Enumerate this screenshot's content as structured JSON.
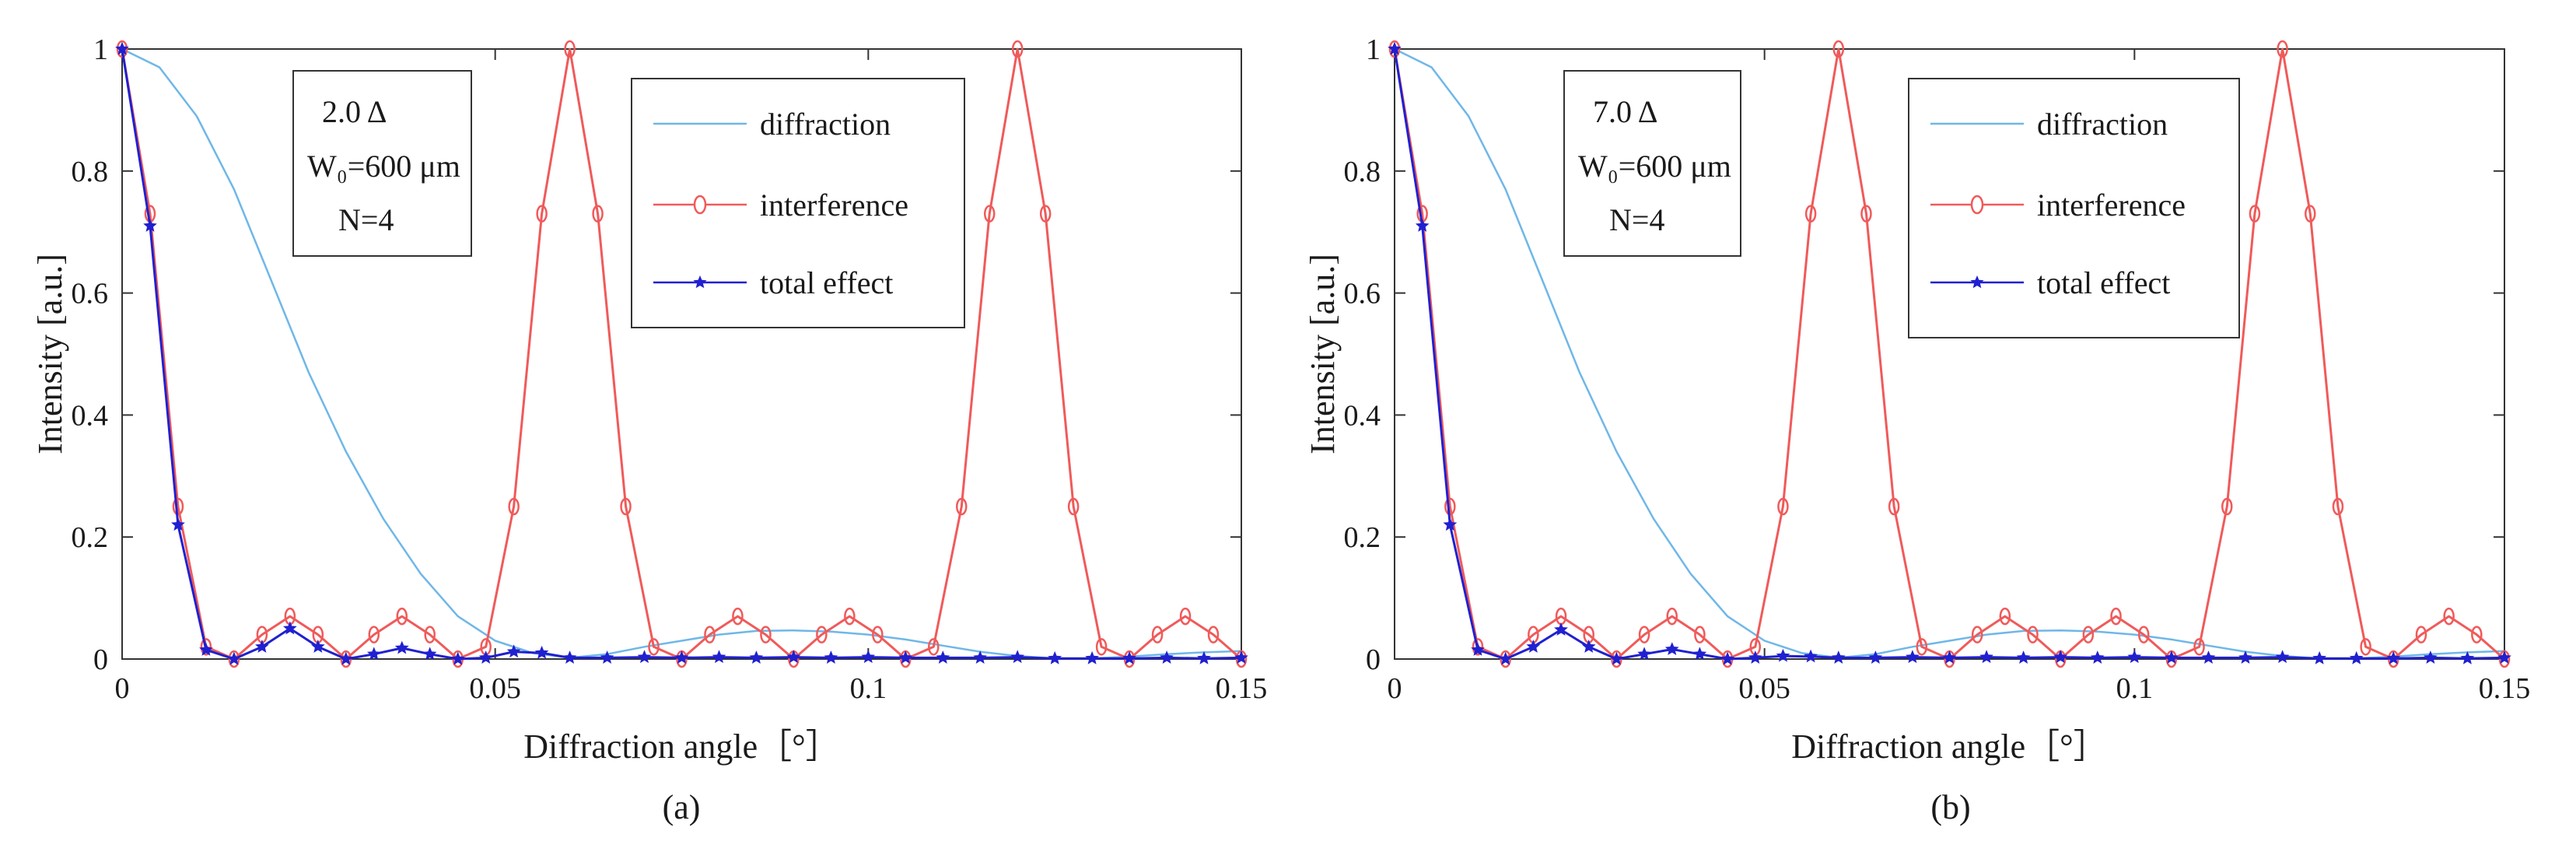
{
  "figure": {
    "panels": [
      {
        "id": "a",
        "panel_label": "(a)",
        "info": {
          "line1": "2.0 Δ",
          "line2": "W₀=600 μm",
          "line3": "N=4"
        },
        "legend": {
          "diffraction": "diffraction",
          "interference": "interference",
          "total": "total effect"
        }
      },
      {
        "id": "b",
        "panel_label": "(b)",
        "info": {
          "line1": "7.0 Δ",
          "line2": "W₀=600 μm",
          "line3": "N=4"
        },
        "legend": {
          "diffraction": "diffraction",
          "interference": "interference",
          "total": "total effect"
        }
      }
    ]
  },
  "colors": {
    "diffraction": "#6fb7e8",
    "interference": "#f05a5a",
    "total": "#2020d0",
    "axis": "#333333",
    "box": "#333333"
  },
  "chart_data": [
    {
      "type": "line",
      "title": "",
      "xlabel": "Diffraction angle［°］",
      "ylabel": "Intensity [a.u.]",
      "xlim": [
        0,
        0.15
      ],
      "ylim": [
        0,
        1
      ],
      "xticks": [
        0,
        0.05,
        0.1,
        0.15
      ],
      "xtick_labels": [
        "0",
        "0.05",
        "0.1",
        "0.15"
      ],
      "yticks": [
        0,
        0.2,
        0.4,
        0.6,
        0.8,
        1
      ],
      "ytick_labels": [
        "0",
        "0.2",
        "0.4",
        "0.6",
        "0.8",
        "1"
      ],
      "series": [
        {
          "name": "diffraction",
          "marker": "none",
          "x": [
            0,
            0.005,
            0.01,
            0.015,
            0.02,
            0.025,
            0.03,
            0.035,
            0.04,
            0.045,
            0.05,
            0.055,
            0.06,
            0.065,
            0.07,
            0.075,
            0.08,
            0.085,
            0.09,
            0.095,
            0.1,
            0.105,
            0.11,
            0.115,
            0.12,
            0.125,
            0.13,
            0.135,
            0.14,
            0.145,
            0.15
          ],
          "y": [
            1,
            0.97,
            0.89,
            0.77,
            0.62,
            0.47,
            0.34,
            0.23,
            0.14,
            0.07,
            0.03,
            0.01,
            0.002,
            0.008,
            0.02,
            0.03,
            0.04,
            0.046,
            0.047,
            0.045,
            0.04,
            0.032,
            0.022,
            0.012,
            0.005,
            0.001,
            0.001,
            0.004,
            0.008,
            0.011,
            0.013
          ]
        },
        {
          "name": "interference",
          "marker": "circle",
          "x": [
            0,
            0.00375,
            0.0075,
            0.01125,
            0.015,
            0.01875,
            0.0225,
            0.02625,
            0.03,
            0.03375,
            0.0375,
            0.04125,
            0.045,
            0.04875,
            0.0525,
            0.05625,
            0.06,
            0.06375,
            0.0675,
            0.07125,
            0.075,
            0.07875,
            0.0825,
            0.08625,
            0.09,
            0.09375,
            0.0975,
            0.10125,
            0.105,
            0.10875,
            0.1125,
            0.11625,
            0.12,
            0.12375,
            0.1275,
            0.13125,
            0.135,
            0.13875,
            0.1425,
            0.14625,
            0.15
          ],
          "y": [
            1,
            0.73,
            0.25,
            0.02,
            0,
            0.04,
            0.07,
            0.04,
            0,
            0.04,
            0.07,
            0.04,
            0,
            0.02,
            0.25,
            0.73,
            1,
            0.73,
            0.25,
            0.02,
            0,
            0.04,
            0.07,
            0.04,
            0,
            0.04,
            0.07,
            0.04,
            0,
            0.02,
            0.25,
            0.73,
            1,
            0.73,
            0.25,
            0.02,
            0,
            0.04,
            0.07,
            0.04,
            0
          ]
        },
        {
          "name": "total effect",
          "marker": "star",
          "x": [
            0,
            0.00375,
            0.0075,
            0.01125,
            0.015,
            0.01875,
            0.0225,
            0.02625,
            0.03,
            0.03375,
            0.0375,
            0.04125,
            0.045,
            0.04875,
            0.0525,
            0.05625,
            0.06,
            0.065,
            0.07,
            0.075,
            0.08,
            0.085,
            0.09,
            0.095,
            0.1,
            0.105,
            0.11,
            0.115,
            0.12,
            0.125,
            0.13,
            0.135,
            0.14,
            0.145,
            0.15
          ],
          "y": [
            1,
            0.71,
            0.22,
            0.015,
            0,
            0.02,
            0.05,
            0.02,
            0,
            0.008,
            0.018,
            0.008,
            0,
            0.002,
            0.012,
            0.01,
            0.002,
            0.002,
            0.003,
            0.002,
            0.003,
            0.002,
            0.003,
            0.002,
            0.003,
            0.002,
            0.002,
            0.002,
            0.003,
            0.001,
            0.001,
            0.001,
            0.002,
            0.001,
            0.002
          ]
        }
      ]
    },
    {
      "type": "line",
      "title": "",
      "xlabel": "Diffraction angle［°］",
      "ylabel": "Intensity [a.u.]",
      "xlim": [
        0,
        0.15
      ],
      "ylim": [
        0,
        1
      ],
      "xticks": [
        0,
        0.05,
        0.1,
        0.15
      ],
      "xtick_labels": [
        "0",
        "0.05",
        "0.1",
        "0.15"
      ],
      "yticks": [
        0,
        0.2,
        0.4,
        0.6,
        0.8,
        1
      ],
      "ytick_labels": [
        "0",
        "0.2",
        "0.4",
        "0.6",
        "0.8",
        "1"
      ],
      "series": [
        {
          "name": "diffraction",
          "marker": "none",
          "x": [
            0,
            0.005,
            0.01,
            0.015,
            0.02,
            0.025,
            0.03,
            0.035,
            0.04,
            0.045,
            0.05,
            0.055,
            0.06,
            0.065,
            0.07,
            0.075,
            0.08,
            0.085,
            0.09,
            0.095,
            0.1,
            0.105,
            0.11,
            0.115,
            0.12,
            0.125,
            0.13,
            0.135,
            0.14,
            0.145,
            0.15
          ],
          "y": [
            1,
            0.97,
            0.89,
            0.77,
            0.62,
            0.47,
            0.34,
            0.23,
            0.14,
            0.07,
            0.03,
            0.01,
            0.002,
            0.008,
            0.02,
            0.03,
            0.04,
            0.046,
            0.047,
            0.045,
            0.04,
            0.032,
            0.022,
            0.012,
            0.005,
            0.001,
            0.001,
            0.004,
            0.008,
            0.011,
            0.013
          ]
        },
        {
          "name": "interference",
          "marker": "circle",
          "x": [
            0,
            0.00375,
            0.0075,
            0.01125,
            0.015,
            0.01875,
            0.0225,
            0.02625,
            0.03,
            0.03375,
            0.0375,
            0.04125,
            0.045,
            0.04875,
            0.0525,
            0.05625,
            0.06,
            0.06375,
            0.0675,
            0.07125,
            0.075,
            0.07875,
            0.0825,
            0.08625,
            0.09,
            0.09375,
            0.0975,
            0.10125,
            0.105,
            0.10875,
            0.1125,
            0.11625,
            0.12,
            0.12375,
            0.1275,
            0.13125,
            0.135,
            0.13875,
            0.1425,
            0.14625,
            0.15
          ],
          "y": [
            1,
            0.73,
            0.25,
            0.02,
            0,
            0.04,
            0.07,
            0.04,
            0,
            0.04,
            0.07,
            0.04,
            0,
            0.02,
            0.25,
            0.73,
            1,
            0.73,
            0.25,
            0.02,
            0,
            0.04,
            0.07,
            0.04,
            0,
            0.04,
            0.07,
            0.04,
            0,
            0.02,
            0.25,
            0.73,
            1,
            0.73,
            0.25,
            0.02,
            0,
            0.04,
            0.07,
            0.04,
            0
          ]
        },
        {
          "name": "total effect",
          "marker": "star",
          "x": [
            0,
            0.00375,
            0.0075,
            0.01125,
            0.015,
            0.01875,
            0.0225,
            0.02625,
            0.03,
            0.03375,
            0.0375,
            0.04125,
            0.045,
            0.04875,
            0.0525,
            0.05625,
            0.06,
            0.065,
            0.07,
            0.075,
            0.08,
            0.085,
            0.09,
            0.095,
            0.1,
            0.105,
            0.11,
            0.115,
            0.12,
            0.125,
            0.13,
            0.135,
            0.14,
            0.145,
            0.15
          ],
          "y": [
            1,
            0.71,
            0.22,
            0.015,
            0,
            0.02,
            0.048,
            0.02,
            0,
            0.008,
            0.016,
            0.008,
            0,
            0.002,
            0.005,
            0.004,
            0.002,
            0.002,
            0.003,
            0.002,
            0.003,
            0.002,
            0.003,
            0.002,
            0.003,
            0.002,
            0.002,
            0.002,
            0.003,
            0.001,
            0.001,
            0.001,
            0.002,
            0.001,
            0.002
          ]
        }
      ]
    }
  ]
}
